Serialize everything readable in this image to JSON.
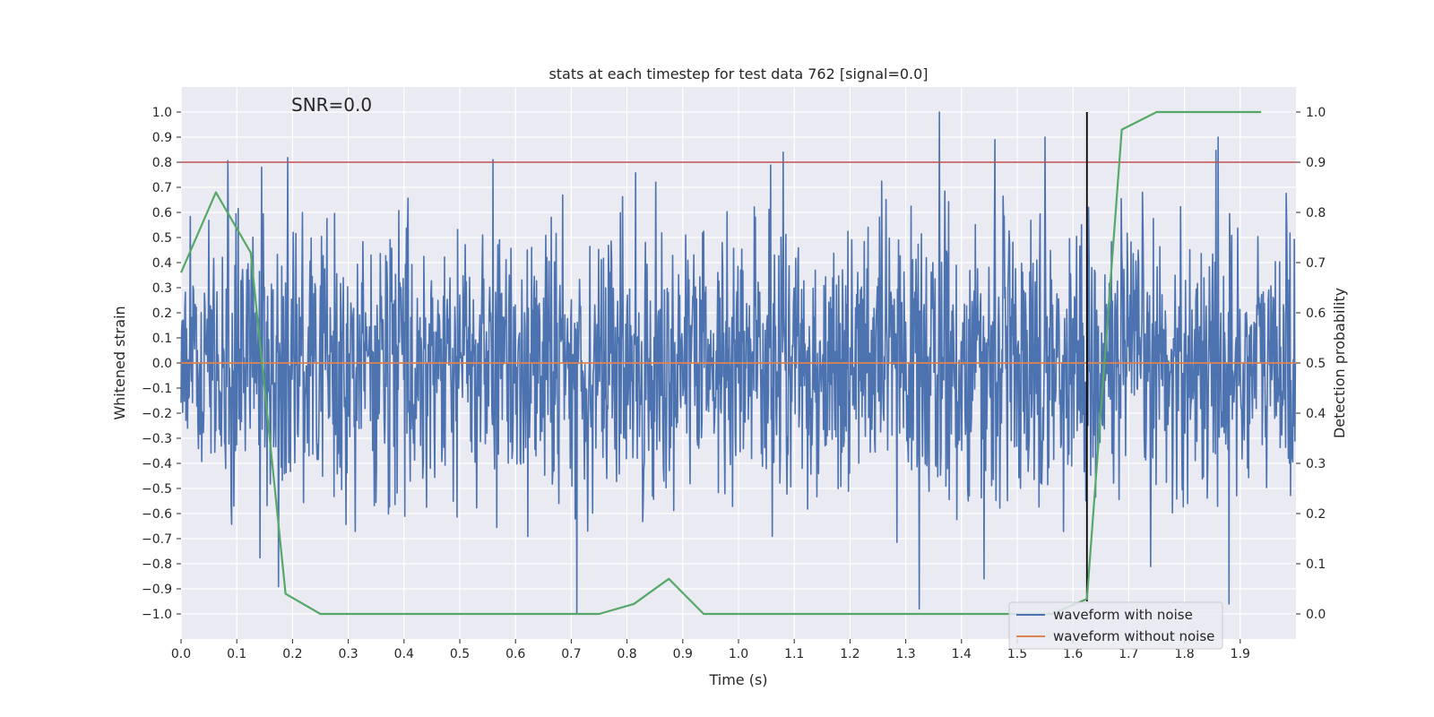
{
  "chart_data": {
    "type": "line",
    "title": "stats at each timestep for test data 762 [signal=0.0]",
    "xlabel": "Time (s)",
    "ylabel_left": "Whitened strain",
    "ylabel_right": "Detection probability",
    "annotation": "SNR=0.0",
    "xlim": [
      0.0,
      2.0
    ],
    "ylim_left": [
      -1.1,
      1.1
    ],
    "ylim_right": [
      -0.05,
      1.05
    ],
    "xticks": [
      "0.0",
      "0.1",
      "0.2",
      "0.3",
      "0.4",
      "0.5",
      "0.6",
      "0.7",
      "0.8",
      "0.9",
      "1.0",
      "1.1",
      "1.2",
      "1.3",
      "1.4",
      "1.5",
      "1.6",
      "1.7",
      "1.8",
      "1.9"
    ],
    "yticks_left": [
      "1.0",
      "0.9",
      "0.8",
      "0.7",
      "0.6",
      "0.5",
      "0.4",
      "0.3",
      "0.2",
      "0.1",
      "0.0",
      "−0.1",
      "−0.2",
      "−0.3",
      "−0.4",
      "−0.5",
      "−0.6",
      "−0.7",
      "−0.8",
      "−0.9",
      "−1.0"
    ],
    "yticks_right": [
      "1.0",
      "0.9",
      "0.8",
      "0.7",
      "0.6",
      "0.5",
      "0.4",
      "0.3",
      "0.2",
      "0.1",
      "0.0"
    ],
    "threshold_left": 0.8,
    "detection_time": 1.625,
    "detection_line_range": [
      -0.95,
      1.0
    ],
    "series": [
      {
        "name": "waveform with noise",
        "axis": "left",
        "color": "#4c72b0",
        "description": "whitened noise, roughly symmetric about 0 with amplitude mostly within ±0.5 and spikes to about ±1.0",
        "notable_peaks": [
          [
            0.145,
            0.78
          ],
          [
            0.56,
            0.81
          ],
          [
            0.71,
            -1.0
          ],
          [
            1.08,
            0.84
          ],
          [
            1.36,
            1.0
          ],
          [
            1.44,
            -0.86
          ],
          [
            1.46,
            0.89
          ],
          [
            1.55,
            0.9
          ],
          [
            1.86,
            0.9
          ],
          [
            1.88,
            -0.96
          ]
        ]
      },
      {
        "name": "waveform without noise",
        "axis": "left",
        "color": "#dd8452",
        "x": [
          0.0,
          2.0
        ],
        "values": [
          0.0,
          0.0
        ]
      },
      {
        "name": "detection probability",
        "axis": "right",
        "color": "#55a868",
        "x": [
          0.0,
          0.0625,
          0.125,
          0.1875,
          0.25,
          0.3125,
          0.375,
          0.4375,
          0.5,
          0.5625,
          0.625,
          0.6875,
          0.75,
          0.8125,
          0.875,
          0.9375,
          1.0,
          1.0625,
          1.125,
          1.1875,
          1.25,
          1.3125,
          1.375,
          1.4375,
          1.5,
          1.5625,
          1.625,
          1.6875,
          1.75,
          1.8125,
          1.875,
          1.9375
        ],
        "values": [
          0.68,
          0.84,
          0.72,
          0.04,
          0.0,
          0.0,
          0.0,
          0.0,
          0.0,
          0.0,
          0.0,
          0.0,
          0.0,
          0.02,
          0.07,
          0.0,
          0.0,
          0.0,
          0.0,
          0.0,
          0.0,
          0.0,
          0.0,
          0.0,
          0.0,
          0.0,
          0.03,
          0.965,
          1.0,
          1.0,
          1.0,
          1.0
        ]
      }
    ],
    "legend": {
      "placement": "lower-right",
      "entries": [
        {
          "label": "waveform with noise",
          "color": "#4c72b0"
        },
        {
          "label": "waveform without noise",
          "color": "#dd8452"
        }
      ]
    }
  }
}
